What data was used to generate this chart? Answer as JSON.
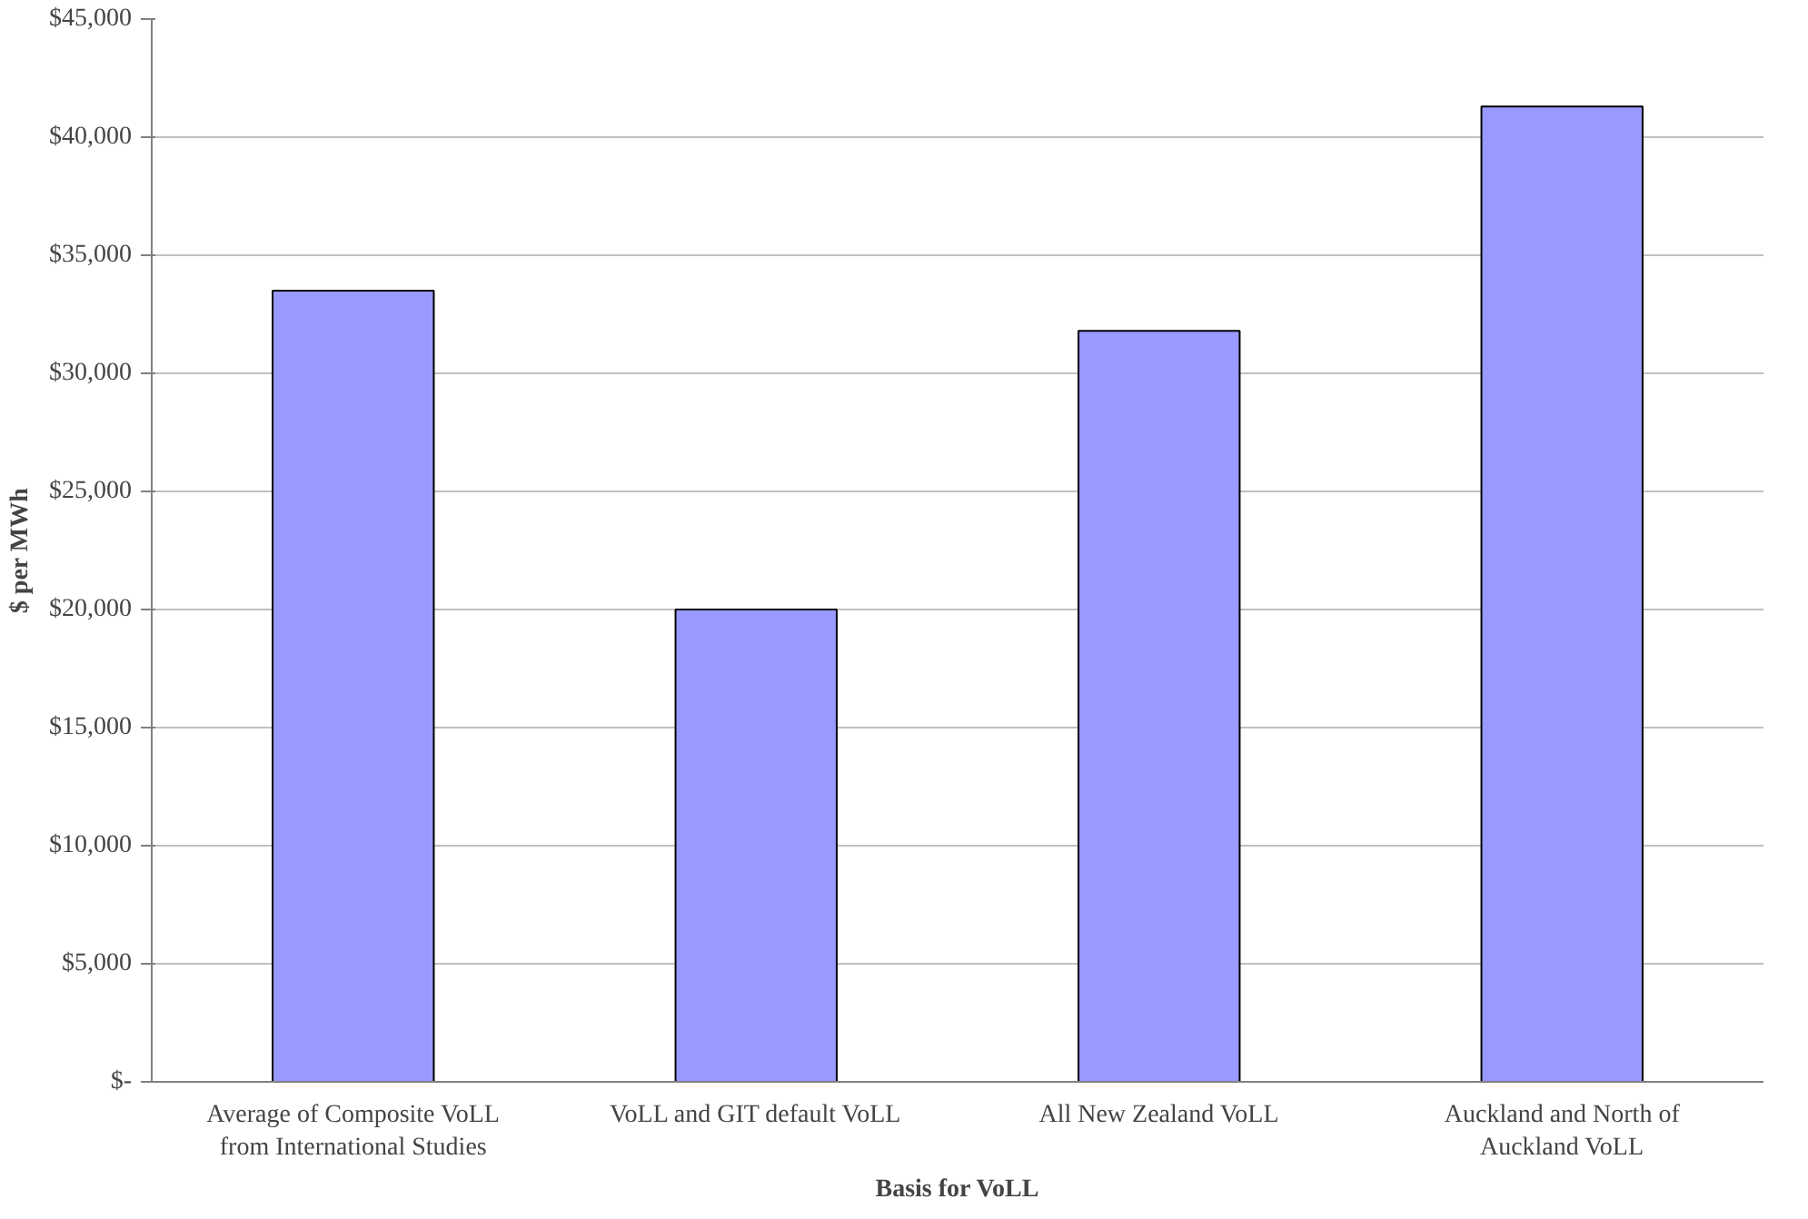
{
  "chart_data": {
    "type": "bar",
    "xlabel": "Basis for VoLL",
    "ylabel": "$ per MWh",
    "categories": [
      "Average of Composite VoLL\nfrom International Studies",
      "VoLL and GIT default VoLL",
      "All New Zealand VoLL",
      "Auckland and North of\nAuckland VoLL"
    ],
    "values": [
      33500,
      20000,
      31800,
      41300
    ],
    "color": "#9999ff",
    "ylim": [
      0,
      45000
    ],
    "yticks": [
      {
        "value": 0,
        "label": "$-"
      },
      {
        "value": 5000,
        "label": "$5,000"
      },
      {
        "value": 10000,
        "label": "$10,000"
      },
      {
        "value": 15000,
        "label": "$15,000"
      },
      {
        "value": 20000,
        "label": "$20,000"
      },
      {
        "value": 25000,
        "label": "$25,000"
      },
      {
        "value": 30000,
        "label": "$30,000"
      },
      {
        "value": 35000,
        "label": "$35,000"
      },
      {
        "value": 40000,
        "label": "$40,000"
      },
      {
        "value": 45000,
        "label": "$45,000"
      }
    ],
    "grid": "y"
  }
}
